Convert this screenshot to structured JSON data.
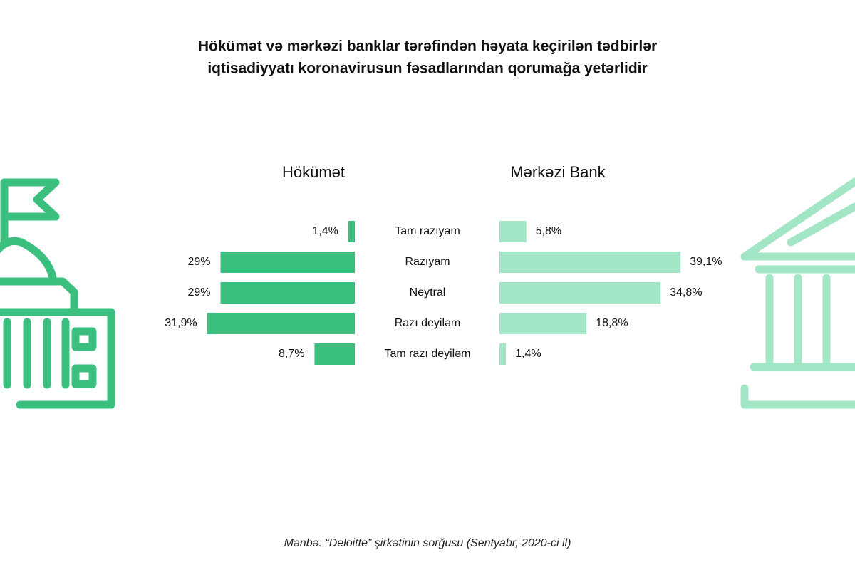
{
  "chart_data": {
    "type": "butterfly-bar",
    "title": [
      "Hökümət və mərkəzi banklar tərəfindən həyata keçirilən tədbirlər",
      "iqtisadiyyatı koronavirusun fəsadlarından qorumağa yetərlidir"
    ],
    "categories": [
      "Tam razıyam",
      "Razıyam",
      "Neytral",
      "Razı deyiləm",
      "Tam razı deyiləm"
    ],
    "series": [
      {
        "name": "Hökümət",
        "color": "#3bbf7f",
        "values": [
          1.4,
          29,
          29,
          31.9,
          8.7
        ],
        "value_labels": [
          "1,4%",
          "29%",
          "29%",
          "31,9%",
          "8,7%"
        ]
      },
      {
        "name": "Mərkəzi Bank",
        "color": "#a3e6c6",
        "values": [
          5.8,
          39.1,
          34.8,
          18.8,
          1.4
        ],
        "value_labels": [
          "5,8%",
          "39,1%",
          "34,8%",
          "18,8%",
          "1,4%"
        ]
      }
    ],
    "source": "Mənbə: “Deloitte” şirkətinin sorğusu (Sentyabr, 2020-ci il)"
  }
}
